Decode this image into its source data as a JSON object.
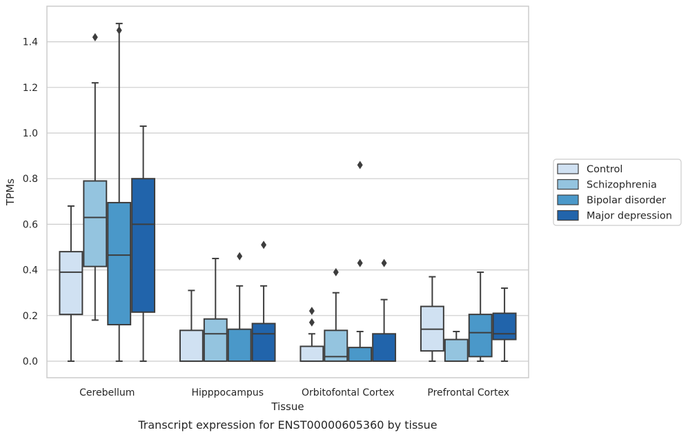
{
  "chart_data": {
    "type": "box",
    "xlabel": "Tissue",
    "ylabel": "TPMs",
    "caption": "Transcript expression for ENST00000605360 by tissue",
    "ylim": [
      -0.07,
      1.56
    ],
    "yticks": [
      "0.0",
      "0.2",
      "0.4",
      "0.6",
      "0.8",
      "1.0",
      "1.2",
      "1.4"
    ],
    "grid": "horizontal",
    "legend_position": "right",
    "categories": [
      "Cerebellum",
      "Hipppocampus",
      "Orbitofontal Cortex",
      "Prefrontal Cortex"
    ],
    "series": [
      {
        "name": "Control",
        "color": "#d0e1f2",
        "boxes": [
          {
            "whislo": 0.0,
            "q1": 0.205,
            "med": 0.39,
            "q3": 0.48,
            "whishi": 0.68,
            "fliers": []
          },
          {
            "whislo": 0.0,
            "q1": 0.0,
            "med": 0.0,
            "q3": 0.135,
            "whishi": 0.31,
            "fliers": []
          },
          {
            "whislo": 0.0,
            "q1": 0.0,
            "med": 0.0,
            "q3": 0.065,
            "whishi": 0.12,
            "fliers": [
              0.17,
              0.22
            ]
          },
          {
            "whislo": 0.0,
            "q1": 0.045,
            "med": 0.14,
            "q3": 0.24,
            "whishi": 0.37,
            "fliers": []
          }
        ]
      },
      {
        "name": "Schizophrenia",
        "color": "#94c4df",
        "boxes": [
          {
            "whislo": 0.18,
            "q1": 0.415,
            "med": 0.63,
            "q3": 0.79,
            "whishi": 1.22,
            "fliers": [
              1.42
            ]
          },
          {
            "whislo": 0.0,
            "q1": 0.0,
            "med": 0.12,
            "q3": 0.185,
            "whishi": 0.45,
            "fliers": []
          },
          {
            "whislo": 0.0,
            "q1": 0.0,
            "med": 0.02,
            "q3": 0.135,
            "whishi": 0.3,
            "fliers": [
              0.39
            ]
          },
          {
            "whislo": 0.0,
            "q1": 0.0,
            "med": 0.0,
            "q3": 0.095,
            "whishi": 0.13,
            "fliers": []
          }
        ]
      },
      {
        "name": "Bipolar disorder",
        "color": "#4a98c9",
        "boxes": [
          {
            "whislo": 0.0,
            "q1": 0.16,
            "med": 0.465,
            "q3": 0.695,
            "whishi": 1.48,
            "fliers": [
              1.45
            ]
          },
          {
            "whislo": 0.0,
            "q1": 0.0,
            "med": 0.0,
            "q3": 0.14,
            "whishi": 0.33,
            "fliers": [
              0.46
            ]
          },
          {
            "whislo": 0.0,
            "q1": 0.0,
            "med": 0.0,
            "q3": 0.06,
            "whishi": 0.13,
            "fliers": [
              0.43,
              0.86
            ]
          },
          {
            "whislo": 0.0,
            "q1": 0.02,
            "med": 0.125,
            "q3": 0.205,
            "whishi": 0.39,
            "fliers": []
          }
        ]
      },
      {
        "name": "Major depression",
        "color": "#2164ab",
        "boxes": [
          {
            "whislo": 0.0,
            "q1": 0.215,
            "med": 0.6,
            "q3": 0.8,
            "whishi": 1.03,
            "fliers": []
          },
          {
            "whislo": 0.0,
            "q1": 0.0,
            "med": 0.12,
            "q3": 0.165,
            "whishi": 0.33,
            "fliers": [
              0.51
            ]
          },
          {
            "whislo": 0.0,
            "q1": 0.0,
            "med": 0.0,
            "q3": 0.12,
            "whishi": 0.27,
            "fliers": [
              0.43
            ]
          },
          {
            "whislo": 0.0,
            "q1": 0.095,
            "med": 0.12,
            "q3": 0.21,
            "whishi": 0.32,
            "fliers": []
          }
        ]
      }
    ]
  }
}
